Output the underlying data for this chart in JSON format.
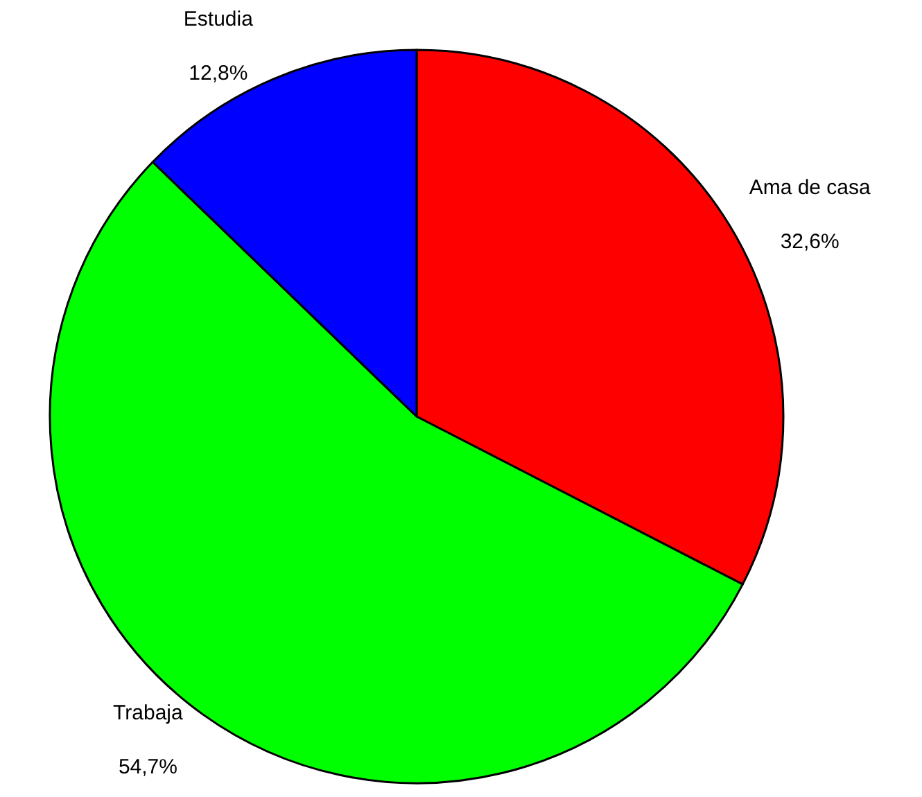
{
  "chart_data": {
    "type": "pie",
    "categories": [
      "Ama de casa",
      "Trabaja",
      "Estudia"
    ],
    "values": [
      32.6,
      54.7,
      12.8
    ],
    "value_labels": [
      "32,6%",
      "54,7%",
      "12,8%"
    ],
    "colors": [
      "#ff0000",
      "#00ff00",
      "#0000ff"
    ],
    "legend": false
  }
}
